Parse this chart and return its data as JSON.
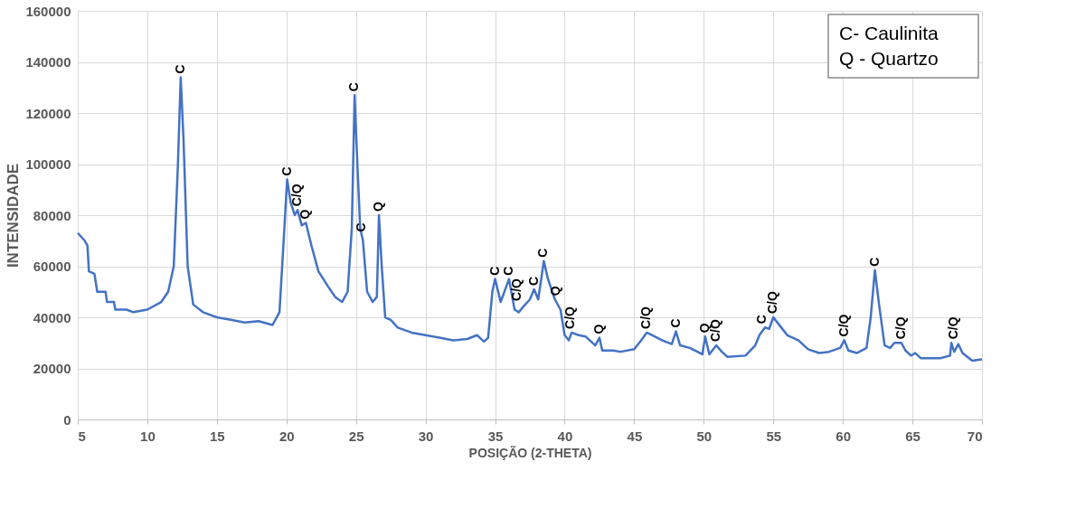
{
  "chart_data": {
    "type": "line",
    "xlabel": "POSIÇÃO (2-THETA)",
    "ylabel": "INTENSIDADE",
    "xlim": [
      5,
      70
    ],
    "xticks": [
      5,
      10,
      15,
      20,
      25,
      30,
      35,
      40,
      45,
      50,
      55,
      60,
      65,
      70
    ],
    "ylim": [
      0,
      160000
    ],
    "yticks": [
      0,
      20000,
      40000,
      60000,
      80000,
      100000,
      120000,
      140000,
      160000
    ],
    "grid": true,
    "marker": "none",
    "line_style": "solid",
    "series": [
      {
        "color": "#4472c4",
        "x": [
          5,
          5.5,
          5.7,
          5.8,
          6.2,
          6.4,
          7,
          7.1,
          7.6,
          7.7,
          8.5,
          9,
          10,
          11,
          11.5,
          11.9,
          12.2,
          12.4,
          12.6,
          12.9,
          13.3,
          14,
          15,
          16,
          17,
          18,
          19,
          19.5,
          19.8,
          20.05,
          20.3,
          20.6,
          20.8,
          21.1,
          21.4,
          21.8,
          22.3,
          23,
          23.5,
          24,
          24.4,
          24.7,
          24.9,
          25.1,
          25.3,
          25.5,
          25.8,
          26.2,
          26.5,
          26.65,
          26.85,
          27.1,
          27.5,
          28,
          29,
          30,
          31,
          32,
          33,
          33.7,
          34.2,
          34.5,
          34.8,
          35,
          35.4,
          35.8,
          36,
          36.4,
          36.7,
          37,
          37.5,
          37.8,
          38.1,
          38.5,
          38.8,
          39.3,
          39.7,
          40,
          40.3,
          40.5,
          41,
          41.5,
          42.2,
          42.5,
          42.7,
          43.5,
          44,
          45,
          45.5,
          45.9,
          46.3,
          47,
          47.7,
          48,
          48.3,
          49,
          49.9,
          50.1,
          50.4,
          50.9,
          51.3,
          51.7,
          53,
          53.7,
          54,
          54.4,
          54.7,
          55,
          55.5,
          56,
          56.8,
          57.5,
          58.3,
          59,
          59.8,
          60.1,
          60.4,
          61,
          61.7,
          62,
          62.3,
          62.6,
          63,
          63.4,
          63.7,
          64.2,
          64.5,
          64.9,
          65.2,
          65.6,
          67,
          67.7,
          67.8,
          68,
          68.3,
          68.6,
          69.3,
          70
        ],
        "values": [
          73000,
          70000,
          68000,
          58000,
          57000,
          50000,
          50000,
          46000,
          46000,
          43000,
          43000,
          42000,
          43000,
          46000,
          50000,
          60000,
          100000,
          134000,
          110000,
          60000,
          45000,
          42000,
          40000,
          39000,
          38000,
          38500,
          37000,
          42000,
          70000,
          94000,
          85000,
          80000,
          82000,
          76000,
          77000,
          68000,
          58000,
          52000,
          48000,
          46000,
          50000,
          75000,
          127000,
          100000,
          75000,
          70000,
          50000,
          46000,
          48000,
          80000,
          60000,
          40000,
          39000,
          36000,
          34000,
          33000,
          32000,
          31000,
          31500,
          33000,
          30500,
          32000,
          50000,
          55000,
          46000,
          52000,
          55000,
          43000,
          42000,
          44000,
          47000,
          51000,
          47000,
          62000,
          55000,
          47000,
          43000,
          33000,
          31000,
          34000,
          33000,
          32500,
          29000,
          32000,
          27000,
          27000,
          26500,
          27500,
          31000,
          34000,
          33000,
          31000,
          29500,
          34500,
          29000,
          28000,
          25500,
          32500,
          25500,
          29000,
          26500,
          24500,
          25000,
          29000,
          33000,
          36000,
          35500,
          40000,
          36500,
          33000,
          31000,
          27500,
          26000,
          26500,
          28000,
          31000,
          27000,
          26000,
          28000,
          40000,
          58500,
          45000,
          29000,
          28000,
          30000,
          30000,
          27000,
          25000,
          26000,
          24000,
          24000,
          25000,
          30000,
          26500,
          29500,
          26000,
          23000,
          23500
        ]
      }
    ],
    "annotations": [
      {
        "text": "C",
        "x": 12.4,
        "y": 134000
      },
      {
        "text": "C",
        "x": 20.05,
        "y": 94000
      },
      {
        "text": "C/Q",
        "x": 20.8,
        "y": 82000
      },
      {
        "text": "Q",
        "x": 21.4,
        "y": 77000
      },
      {
        "text": "C",
        "x": 24.9,
        "y": 127000
      },
      {
        "text": "C",
        "x": 25.4,
        "y": 72000
      },
      {
        "text": "Q",
        "x": 26.65,
        "y": 80000
      },
      {
        "text": "C",
        "x": 35,
        "y": 55000
      },
      {
        "text": "C",
        "x": 36,
        "y": 55000
      },
      {
        "text": "C/Q",
        "x": 36.6,
        "y": 45000
      },
      {
        "text": "C",
        "x": 37.8,
        "y": 51000
      },
      {
        "text": "C",
        "x": 38.5,
        "y": 62000
      },
      {
        "text": "Q",
        "x": 39.4,
        "y": 47000
      },
      {
        "text": "C/Q",
        "x": 40.4,
        "y": 34000
      },
      {
        "text": "Q",
        "x": 42.5,
        "y": 32000
      },
      {
        "text": "C/Q",
        "x": 45.9,
        "y": 34000
      },
      {
        "text": "C",
        "x": 48,
        "y": 34500
      },
      {
        "text": "Q",
        "x": 50.1,
        "y": 32500
      },
      {
        "text": "C/Q",
        "x": 50.9,
        "y": 29000
      },
      {
        "text": "C",
        "x": 54.2,
        "y": 36000
      },
      {
        "text": "C/Q",
        "x": 55,
        "y": 40000
      },
      {
        "text": "C/Q",
        "x": 60.1,
        "y": 31000
      },
      {
        "text": "C",
        "x": 62.3,
        "y": 58500
      },
      {
        "text": "C/Q",
        "x": 64.2,
        "y": 30000
      },
      {
        "text": "C/Q",
        "x": 68,
        "y": 30000
      },
      "C- Caulinita",
      "Q - Quartzo"
    ]
  }
}
